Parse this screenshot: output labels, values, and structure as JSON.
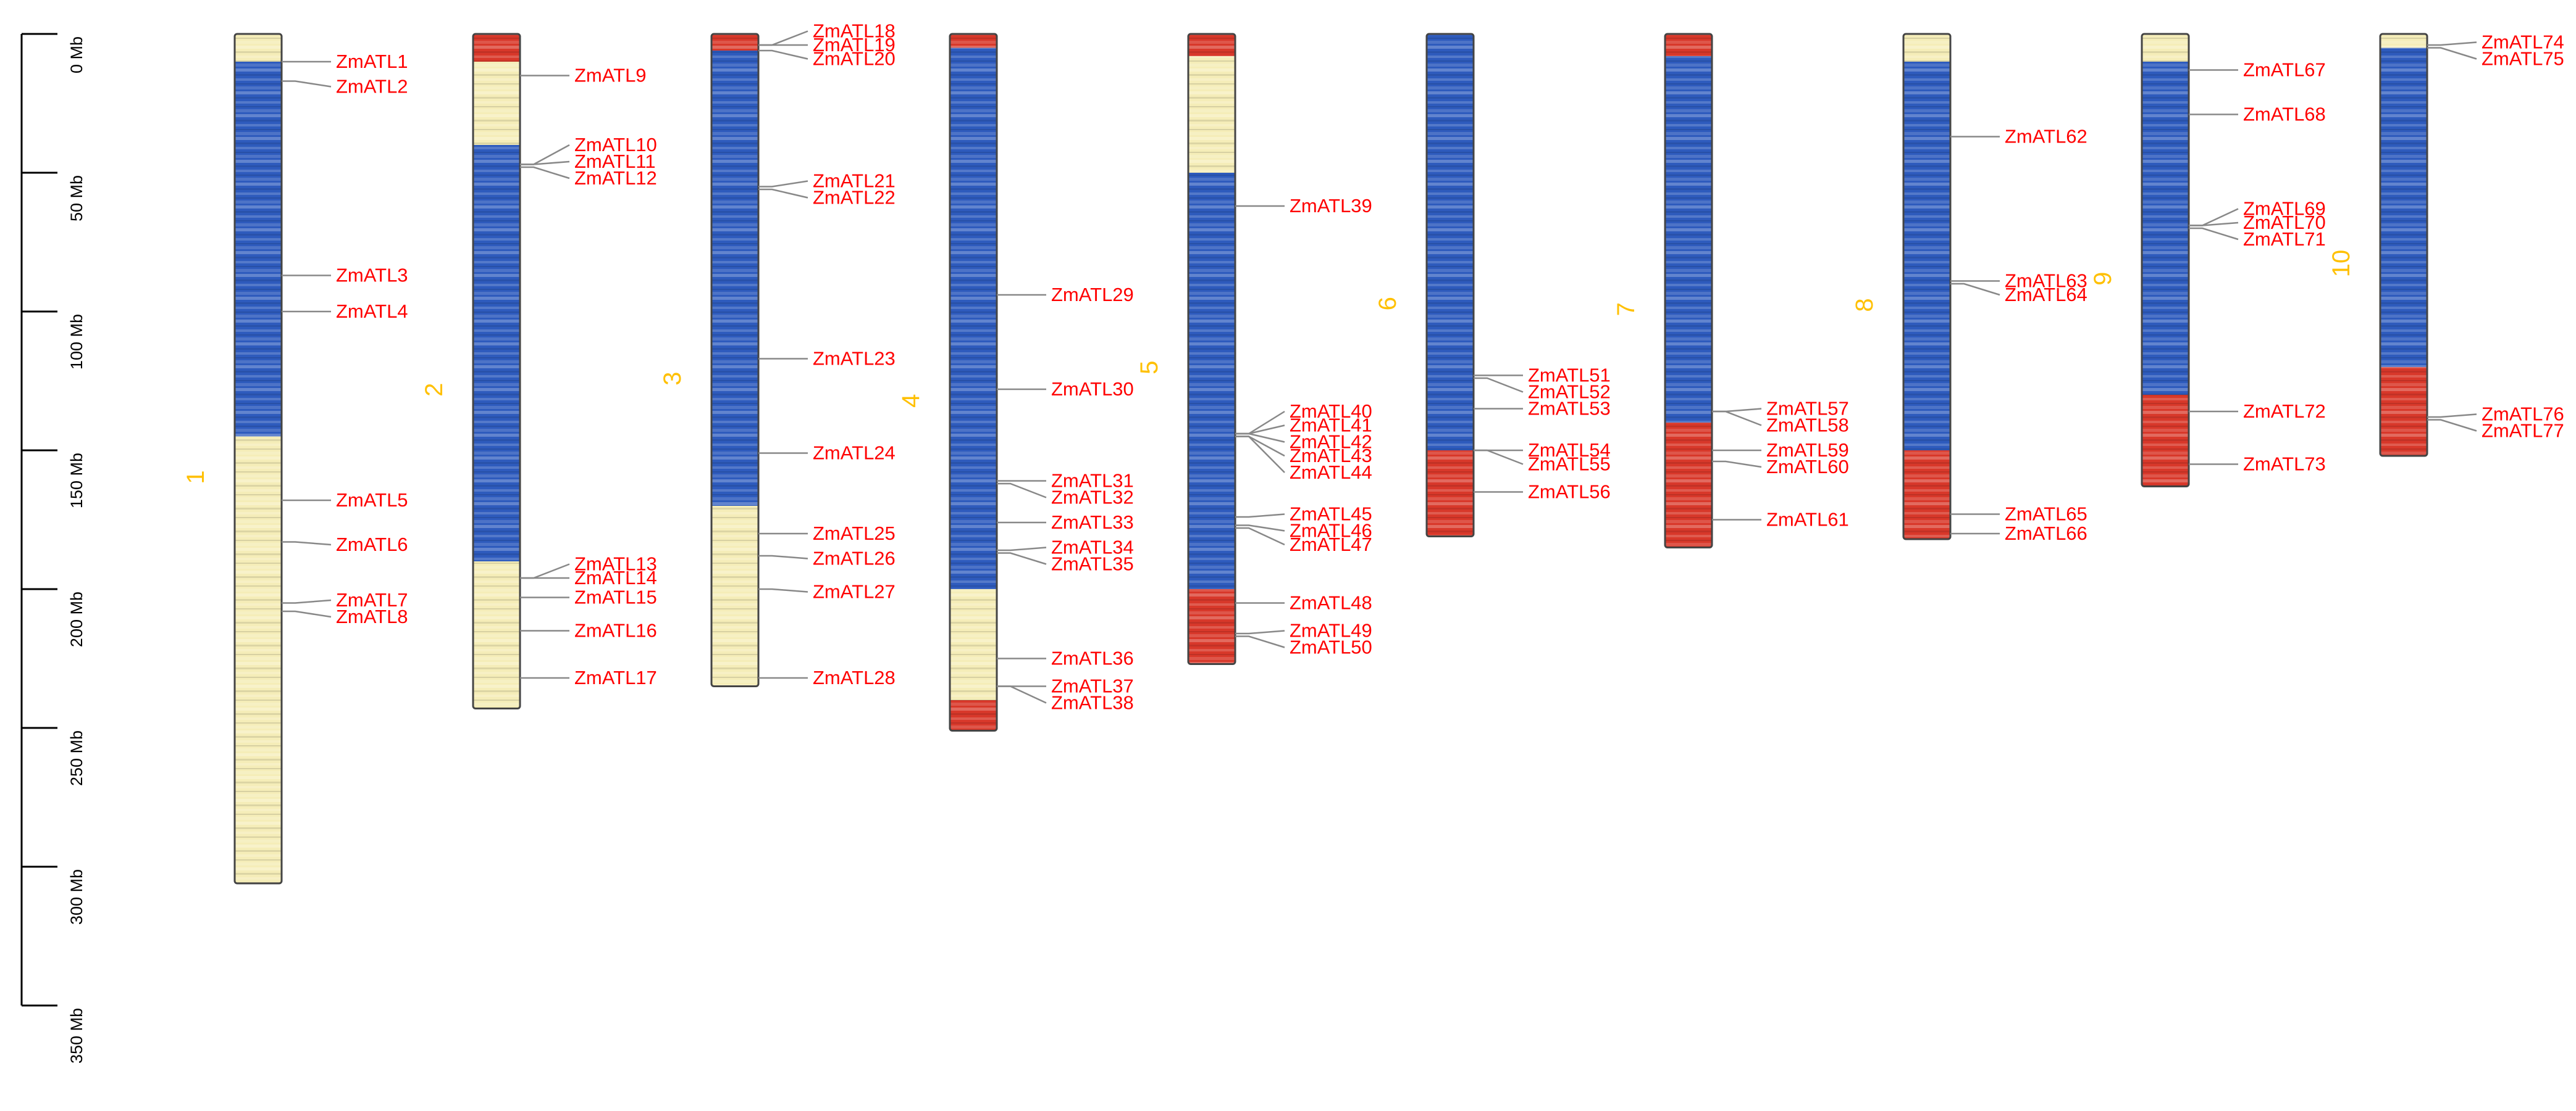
{
  "axis": {
    "unit": "Mb",
    "ticks": [
      {
        "value": 0,
        "label": "0 Mb"
      },
      {
        "value": 50,
        "label": "50 Mb"
      },
      {
        "value": 100,
        "label": "100 Mb"
      },
      {
        "value": 150,
        "label": "150 Mb"
      },
      {
        "value": 200,
        "label": "200 Mb"
      },
      {
        "value": 250,
        "label": "250 Mb"
      },
      {
        "value": 300,
        "label": "300 Mb"
      },
      {
        "value": 350,
        "label": "350 Mb"
      }
    ],
    "range": [
      0,
      350
    ]
  },
  "colors": {
    "gene_label": "#ff0000",
    "chromosome_label": "#ffc000",
    "leader_line": "#888888",
    "density_low": "#2e5bbd",
    "density_mid": "#f5edb8",
    "density_high": "#d8382a",
    "outline": "#444444"
  },
  "chromosomes": [
    {
      "id": "1",
      "label": "1",
      "length": 306,
      "density": [
        [
          0,
          10,
          "m"
        ],
        [
          10,
          130,
          "l"
        ],
        [
          130,
          145,
          "l"
        ],
        [
          145,
          306,
          "m"
        ]
      ],
      "genes": [
        {
          "name": "ZmATL1",
          "pos": 10,
          "label_pos": 10
        },
        {
          "name": "ZmATL2",
          "pos": 17,
          "label_pos": 19
        },
        {
          "name": "ZmATL3",
          "pos": 87,
          "label_pos": 87
        },
        {
          "name": "ZmATL4",
          "pos": 100,
          "label_pos": 100
        },
        {
          "name": "ZmATL5",
          "pos": 168,
          "label_pos": 168
        },
        {
          "name": "ZmATL6",
          "pos": 183,
          "label_pos": 184
        },
        {
          "name": "ZmATL7",
          "pos": 205,
          "label_pos": 204
        },
        {
          "name": "ZmATL8",
          "pos": 208,
          "label_pos": 210
        }
      ]
    },
    {
      "id": "2",
      "label": "2",
      "length": 243,
      "density": [
        [
          0,
          10,
          "h"
        ],
        [
          10,
          40,
          "m"
        ],
        [
          40,
          190,
          "l"
        ],
        [
          190,
          243,
          "m"
        ]
      ],
      "genes": [
        {
          "name": "ZmATL9",
          "pos": 15,
          "label_pos": 15
        },
        {
          "name": "ZmATL10",
          "pos": 47,
          "label_pos": 40
        },
        {
          "name": "ZmATL11",
          "pos": 47,
          "label_pos": 46
        },
        {
          "name": "ZmATL12",
          "pos": 48,
          "label_pos": 52
        },
        {
          "name": "ZmATL13",
          "pos": 196,
          "label_pos": 191
        },
        {
          "name": "ZmATL14",
          "pos": 196,
          "label_pos": 196
        },
        {
          "name": "ZmATL15",
          "pos": 203,
          "label_pos": 203
        },
        {
          "name": "ZmATL16",
          "pos": 215,
          "label_pos": 215
        },
        {
          "name": "ZmATL17",
          "pos": 232,
          "label_pos": 232
        }
      ]
    },
    {
      "id": "3",
      "label": "3",
      "length": 235,
      "density": [
        [
          0,
          6,
          "h"
        ],
        [
          6,
          170,
          "l"
        ],
        [
          170,
          235,
          "m"
        ]
      ],
      "genes": [
        {
          "name": "ZmATL18",
          "pos": 4,
          "label_pos": -1
        },
        {
          "name": "ZmATL19",
          "pos": 4,
          "label_pos": 4
        },
        {
          "name": "ZmATL20",
          "pos": 6,
          "label_pos": 9
        },
        {
          "name": "ZmATL21",
          "pos": 55,
          "label_pos": 53
        },
        {
          "name": "ZmATL22",
          "pos": 56,
          "label_pos": 59
        },
        {
          "name": "ZmATL23",
          "pos": 117,
          "label_pos": 117
        },
        {
          "name": "ZmATL24",
          "pos": 151,
          "label_pos": 151
        },
        {
          "name": "ZmATL25",
          "pos": 180,
          "label_pos": 180
        },
        {
          "name": "ZmATL26",
          "pos": 188,
          "label_pos": 189
        },
        {
          "name": "ZmATL27",
          "pos": 200,
          "label_pos": 201
        },
        {
          "name": "ZmATL28",
          "pos": 232,
          "label_pos": 232
        }
      ]
    },
    {
      "id": "4",
      "label": "4",
      "length": 251,
      "density": [
        [
          0,
          5,
          "h"
        ],
        [
          5,
          200,
          "l"
        ],
        [
          200,
          240,
          "m"
        ],
        [
          240,
          251,
          "h"
        ]
      ],
      "genes": [
        {
          "name": "ZmATL29",
          "pos": 94,
          "label_pos": 94
        },
        {
          "name": "ZmATL30",
          "pos": 128,
          "label_pos": 128
        },
        {
          "name": "ZmATL31",
          "pos": 161,
          "label_pos": 161
        },
        {
          "name": "ZmATL32",
          "pos": 162,
          "label_pos": 167
        },
        {
          "name": "ZmATL33",
          "pos": 176,
          "label_pos": 176
        },
        {
          "name": "ZmATL34",
          "pos": 186,
          "label_pos": 185
        },
        {
          "name": "ZmATL35",
          "pos": 187,
          "label_pos": 191
        },
        {
          "name": "ZmATL36",
          "pos": 225,
          "label_pos": 225
        },
        {
          "name": "ZmATL37",
          "pos": 235,
          "label_pos": 235
        },
        {
          "name": "ZmATL38",
          "pos": 235,
          "label_pos": 241
        }
      ]
    },
    {
      "id": "5",
      "label": "5",
      "length": 227,
      "density": [
        [
          0,
          8,
          "h"
        ],
        [
          8,
          50,
          "m"
        ],
        [
          50,
          200,
          "l"
        ],
        [
          200,
          227,
          "h"
        ]
      ],
      "genes": [
        {
          "name": "ZmATL39",
          "pos": 62,
          "label_pos": 62
        },
        {
          "name": "ZmATL40",
          "pos": 144,
          "label_pos": 136
        },
        {
          "name": "ZmATL41",
          "pos": 144,
          "label_pos": 141
        },
        {
          "name": "ZmATL42",
          "pos": 144,
          "label_pos": 147
        },
        {
          "name": "ZmATL43",
          "pos": 145,
          "label_pos": 152
        },
        {
          "name": "ZmATL44",
          "pos": 145,
          "label_pos": 158
        },
        {
          "name": "ZmATL45",
          "pos": 174,
          "label_pos": 173
        },
        {
          "name": "ZmATL46",
          "pos": 177,
          "label_pos": 179
        },
        {
          "name": "ZmATL47",
          "pos": 178,
          "label_pos": 184
        },
        {
          "name": "ZmATL48",
          "pos": 205,
          "label_pos": 205
        },
        {
          "name": "ZmATL49",
          "pos": 216,
          "label_pos": 215
        },
        {
          "name": "ZmATL50",
          "pos": 217,
          "label_pos": 221
        }
      ]
    },
    {
      "id": "6",
      "label": "6",
      "length": 181,
      "density": [
        [
          0,
          5,
          "l"
        ],
        [
          5,
          150,
          "l"
        ],
        [
          150,
          181,
          "h"
        ]
      ],
      "genes": [
        {
          "name": "ZmATL51",
          "pos": 123,
          "label_pos": 123
        },
        {
          "name": "ZmATL52",
          "pos": 124,
          "label_pos": 129
        },
        {
          "name": "ZmATL53",
          "pos": 135,
          "label_pos": 135
        },
        {
          "name": "ZmATL54",
          "pos": 150,
          "label_pos": 150
        },
        {
          "name": "ZmATL55",
          "pos": 150,
          "label_pos": 155
        },
        {
          "name": "ZmATL56",
          "pos": 165,
          "label_pos": 165
        }
      ]
    },
    {
      "id": "7",
      "label": "7",
      "length": 185,
      "density": [
        [
          0,
          8,
          "h"
        ],
        [
          8,
          140,
          "l"
        ],
        [
          140,
          185,
          "h"
        ]
      ],
      "genes": [
        {
          "name": "ZmATL57",
          "pos": 136,
          "label_pos": 135
        },
        {
          "name": "ZmATL58",
          "pos": 136,
          "label_pos": 141
        },
        {
          "name": "ZmATL59",
          "pos": 150,
          "label_pos": 150
        },
        {
          "name": "ZmATL60",
          "pos": 154,
          "label_pos": 156
        },
        {
          "name": "ZmATL61",
          "pos": 175,
          "label_pos": 175
        }
      ]
    },
    {
      "id": "8",
      "label": "8",
      "length": 182,
      "density": [
        [
          0,
          10,
          "m"
        ],
        [
          10,
          150,
          "l"
        ],
        [
          150,
          182,
          "h"
        ]
      ],
      "genes": [
        {
          "name": "ZmATL62",
          "pos": 37,
          "label_pos": 37
        },
        {
          "name": "ZmATL63",
          "pos": 89,
          "label_pos": 89
        },
        {
          "name": "ZmATL64",
          "pos": 90,
          "label_pos": 94
        },
        {
          "name": "ZmATL65",
          "pos": 173,
          "label_pos": 173
        },
        {
          "name": "ZmATL66",
          "pos": 180,
          "label_pos": 180
        }
      ]
    },
    {
      "id": "9",
      "label": "9",
      "length": 163,
      "density": [
        [
          0,
          10,
          "m"
        ],
        [
          10,
          130,
          "l"
        ],
        [
          130,
          163,
          "h"
        ]
      ],
      "genes": [
        {
          "name": "ZmATL67",
          "pos": 13,
          "label_pos": 13
        },
        {
          "name": "ZmATL68",
          "pos": 29,
          "label_pos": 29
        },
        {
          "name": "ZmATL69",
          "pos": 69,
          "label_pos": 63
        },
        {
          "name": "ZmATL70",
          "pos": 69,
          "label_pos": 68
        },
        {
          "name": "ZmATL71",
          "pos": 70,
          "label_pos": 74
        },
        {
          "name": "ZmATL72",
          "pos": 136,
          "label_pos": 136
        },
        {
          "name": "ZmATL73",
          "pos": 155,
          "label_pos": 155
        }
      ]
    },
    {
      "id": "10",
      "label": "10",
      "length": 152,
      "density": [
        [
          0,
          5,
          "m"
        ],
        [
          5,
          120,
          "l"
        ],
        [
          120,
          152,
          "h"
        ]
      ],
      "genes": [
        {
          "name": "ZmATL74",
          "pos": 4,
          "label_pos": 3
        },
        {
          "name": "ZmATL75",
          "pos": 5,
          "label_pos": 9
        },
        {
          "name": "ZmATL76",
          "pos": 138,
          "label_pos": 137
        },
        {
          "name": "ZmATL77",
          "pos": 139,
          "label_pos": 143
        }
      ]
    }
  ]
}
